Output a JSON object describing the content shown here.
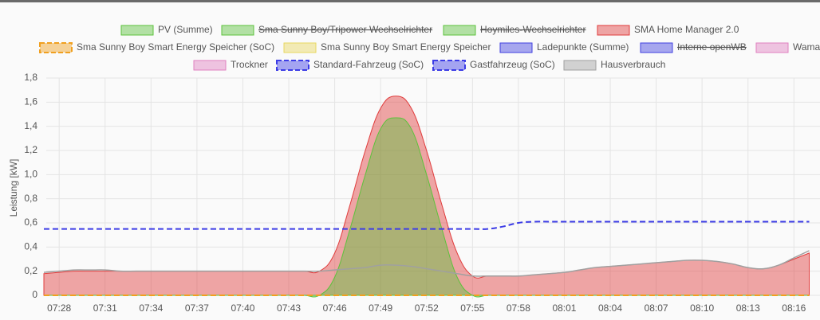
{
  "chart_data": {
    "type": "area",
    "y_label": "Leistung [kW]",
    "categories": [
      null,
      "07:28",
      null,
      null,
      "07:31",
      null,
      null,
      "07:34",
      null,
      null,
      "07:37",
      null,
      null,
      "07:40",
      null,
      null,
      "07:43",
      null,
      null,
      "07:46",
      null,
      null,
      "07:49",
      null,
      null,
      "07:52",
      null,
      null,
      "07:55",
      null,
      null,
      "07:58",
      null,
      null,
      "08:01",
      null,
      null,
      "08:04",
      null,
      null,
      "08:07",
      null,
      null,
      "08:10",
      null,
      null,
      "08:13",
      null,
      null,
      "08:16",
      null
    ],
    "ylim": [
      0,
      1.8
    ],
    "yticks": [
      {
        "value": 0,
        "label": "0"
      },
      {
        "value": 0.2,
        "label": "0,2"
      },
      {
        "value": 0.4,
        "label": "0,4"
      },
      {
        "value": 0.6,
        "label": "0,6"
      },
      {
        "value": 0.8,
        "label": "0,8"
      },
      {
        "value": 1.0,
        "label": "1,0"
      },
      {
        "value": 1.2,
        "label": "1,2"
      },
      {
        "value": 1.4,
        "label": "1,4"
      },
      {
        "value": 1.6,
        "label": "1,6"
      },
      {
        "value": 1.8,
        "label": "1,8"
      }
    ],
    "grid": true,
    "legend": "top",
    "series": [
      {
        "name": "PV (Summe)",
        "color": "#5cc23c",
        "fill": true,
        "values": [
          0,
          0,
          0,
          0,
          0,
          0,
          0,
          0,
          0,
          0,
          0,
          0,
          0,
          0,
          0,
          0,
          0,
          0,
          0,
          0.15,
          0.55,
          1.0,
          1.38,
          1.47,
          1.38,
          1.0,
          0.55,
          0.15,
          0,
          0,
          0,
          0,
          0,
          0,
          0,
          0,
          0,
          0,
          0,
          0,
          0,
          0,
          0,
          0,
          0,
          0,
          0,
          0,
          0,
          0,
          0
        ]
      },
      {
        "name": "Sma Sunny Boy/Tripower Wechselrichter",
        "color": "#5cc23c",
        "hidden": true
      },
      {
        "name": "Hoymiles-Wechselrichter",
        "color": "#5cc23c",
        "hidden": true
      },
      {
        "name": "SMA Home Manager 2.0",
        "color": "#e03c3c",
        "fill": true,
        "values": [
          0.18,
          0.19,
          0.2,
          0.2,
          0.2,
          0.2,
          0.2,
          0.2,
          0.2,
          0.2,
          0.2,
          0.2,
          0.2,
          0.2,
          0.2,
          0.2,
          0.2,
          0.2,
          0.2,
          0.35,
          0.75,
          1.2,
          1.55,
          1.65,
          1.55,
          1.2,
          0.75,
          0.35,
          0.16,
          0.16,
          0.16,
          0.16,
          0.17,
          0.18,
          0.19,
          0.21,
          0.23,
          0.24,
          0.25,
          0.26,
          0.27,
          0.28,
          0.29,
          0.29,
          0.28,
          0.26,
          0.23,
          0.22,
          0.25,
          0.3,
          0.35
        ]
      },
      {
        "name": "Sma Sunny Boy Smart Energy Speicher (SoC)",
        "color": "#f0a020",
        "dashed": true,
        "values": [
          0,
          0,
          0,
          0,
          0,
          0,
          0,
          0,
          0,
          0,
          0,
          0,
          0,
          0,
          0,
          0,
          0,
          0,
          0,
          0,
          0,
          0,
          0,
          0,
          0,
          0,
          0,
          0,
          0,
          0,
          0,
          0,
          0,
          0,
          0,
          0,
          0,
          0,
          0,
          0,
          0,
          0,
          0,
          0,
          0,
          0,
          0,
          0,
          0,
          0,
          0
        ]
      },
      {
        "name": "Sma Sunny Boy Smart Energy Speicher",
        "color": "#e8d860"
      },
      {
        "name": "Ladepunkte (Summe)",
        "color": "#4040e0"
      },
      {
        "name": "Interne openWB",
        "color": "#4040e0",
        "hidden": true
      },
      {
        "name": "Wama",
        "color": "#e080c0"
      },
      {
        "name": "Trockner",
        "color": "#e080c0"
      },
      {
        "name": "Standard-Fahrzeug (SoC)",
        "color": "#3c3ce6",
        "dashed": true,
        "values": [
          0.55,
          0.55,
          0.55,
          0.55,
          0.55,
          0.55,
          0.55,
          0.55,
          0.55,
          0.55,
          0.55,
          0.55,
          0.55,
          0.55,
          0.55,
          0.55,
          0.55,
          0.55,
          0.55,
          0.55,
          0.55,
          0.55,
          0.55,
          0.55,
          0.55,
          0.55,
          0.55,
          0.55,
          0.55,
          0.55,
          0.57,
          0.6,
          0.61,
          0.61,
          0.61,
          0.61,
          0.61,
          0.61,
          0.61,
          0.61,
          0.61,
          0.61,
          0.61,
          0.61,
          0.61,
          0.61,
          0.61,
          0.61,
          0.61,
          0.61,
          0.61
        ]
      },
      {
        "name": "Gastfahrzeug (SoC)",
        "color": "#3c3ce6",
        "dashed": true
      },
      {
        "name": "Hausverbrauch",
        "color": "#a0a0a0",
        "values": [
          0.19,
          0.2,
          0.21,
          0.21,
          0.21,
          0.2,
          0.2,
          0.2,
          0.2,
          0.2,
          0.2,
          0.2,
          0.2,
          0.2,
          0.2,
          0.2,
          0.2,
          0.2,
          0.2,
          0.21,
          0.22,
          0.23,
          0.25,
          0.25,
          0.24,
          0.22,
          0.2,
          0.18,
          0.16,
          0.16,
          0.16,
          0.16,
          0.17,
          0.18,
          0.19,
          0.21,
          0.23,
          0.24,
          0.25,
          0.26,
          0.27,
          0.28,
          0.29,
          0.29,
          0.28,
          0.26,
          0.23,
          0.22,
          0.25,
          0.31,
          0.37
        ]
      }
    ]
  }
}
